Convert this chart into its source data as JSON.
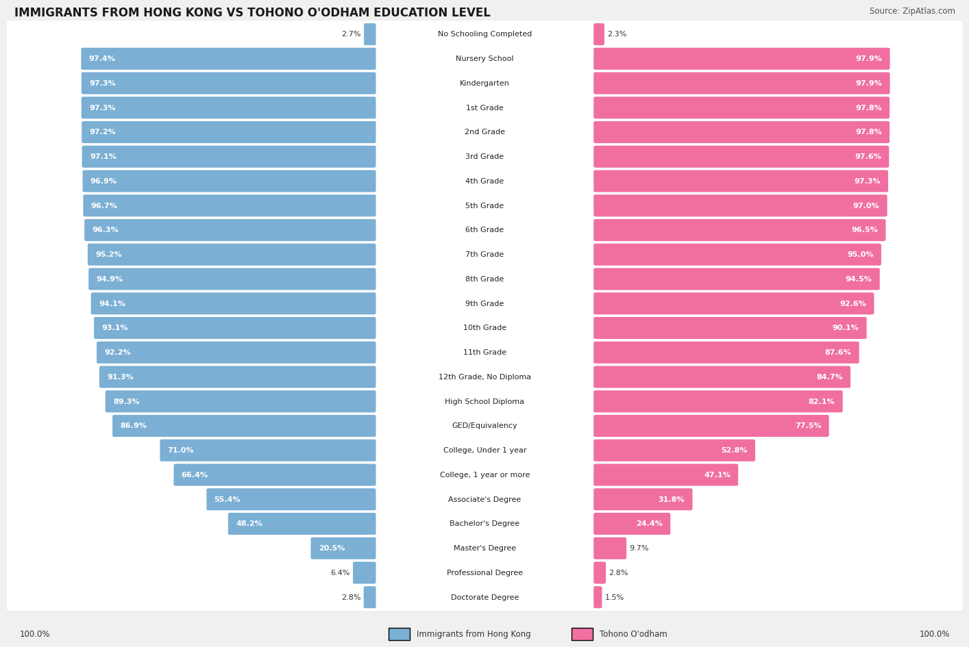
{
  "title": "IMMIGRANTS FROM HONG KONG VS TOHONO O'ODHAM EDUCATION LEVEL",
  "source": "Source: ZipAtlas.com",
  "categories": [
    "No Schooling Completed",
    "Nursery School",
    "Kindergarten",
    "1st Grade",
    "2nd Grade",
    "3rd Grade",
    "4th Grade",
    "5th Grade",
    "6th Grade",
    "7th Grade",
    "8th Grade",
    "9th Grade",
    "10th Grade",
    "11th Grade",
    "12th Grade, No Diploma",
    "High School Diploma",
    "GED/Equivalency",
    "College, Under 1 year",
    "College, 1 year or more",
    "Associate's Degree",
    "Bachelor's Degree",
    "Master's Degree",
    "Professional Degree",
    "Doctorate Degree"
  ],
  "hk_values": [
    2.7,
    97.4,
    97.3,
    97.3,
    97.2,
    97.1,
    96.9,
    96.7,
    96.3,
    95.2,
    94.9,
    94.1,
    93.1,
    92.2,
    91.3,
    89.3,
    86.9,
    71.0,
    66.4,
    55.4,
    48.2,
    20.5,
    6.4,
    2.8
  ],
  "to_values": [
    2.3,
    97.9,
    97.9,
    97.8,
    97.8,
    97.6,
    97.3,
    97.0,
    96.5,
    95.0,
    94.5,
    92.6,
    90.1,
    87.6,
    84.7,
    82.1,
    77.5,
    52.8,
    47.1,
    31.8,
    24.4,
    9.7,
    2.8,
    1.5
  ],
  "hk_color": "#7bafd4",
  "to_color": "#f06fa0",
  "bg_color": "#f0f0f0",
  "bar_bg_color": "#ffffff",
  "row_sep_color": "#e0e0e0",
  "title_fontsize": 12,
  "source_fontsize": 8.5,
  "label_fontsize": 8,
  "category_fontsize": 8,
  "legend_fontsize": 8.5,
  "axis_label_fontsize": 8.5,
  "max_val": 100.0
}
